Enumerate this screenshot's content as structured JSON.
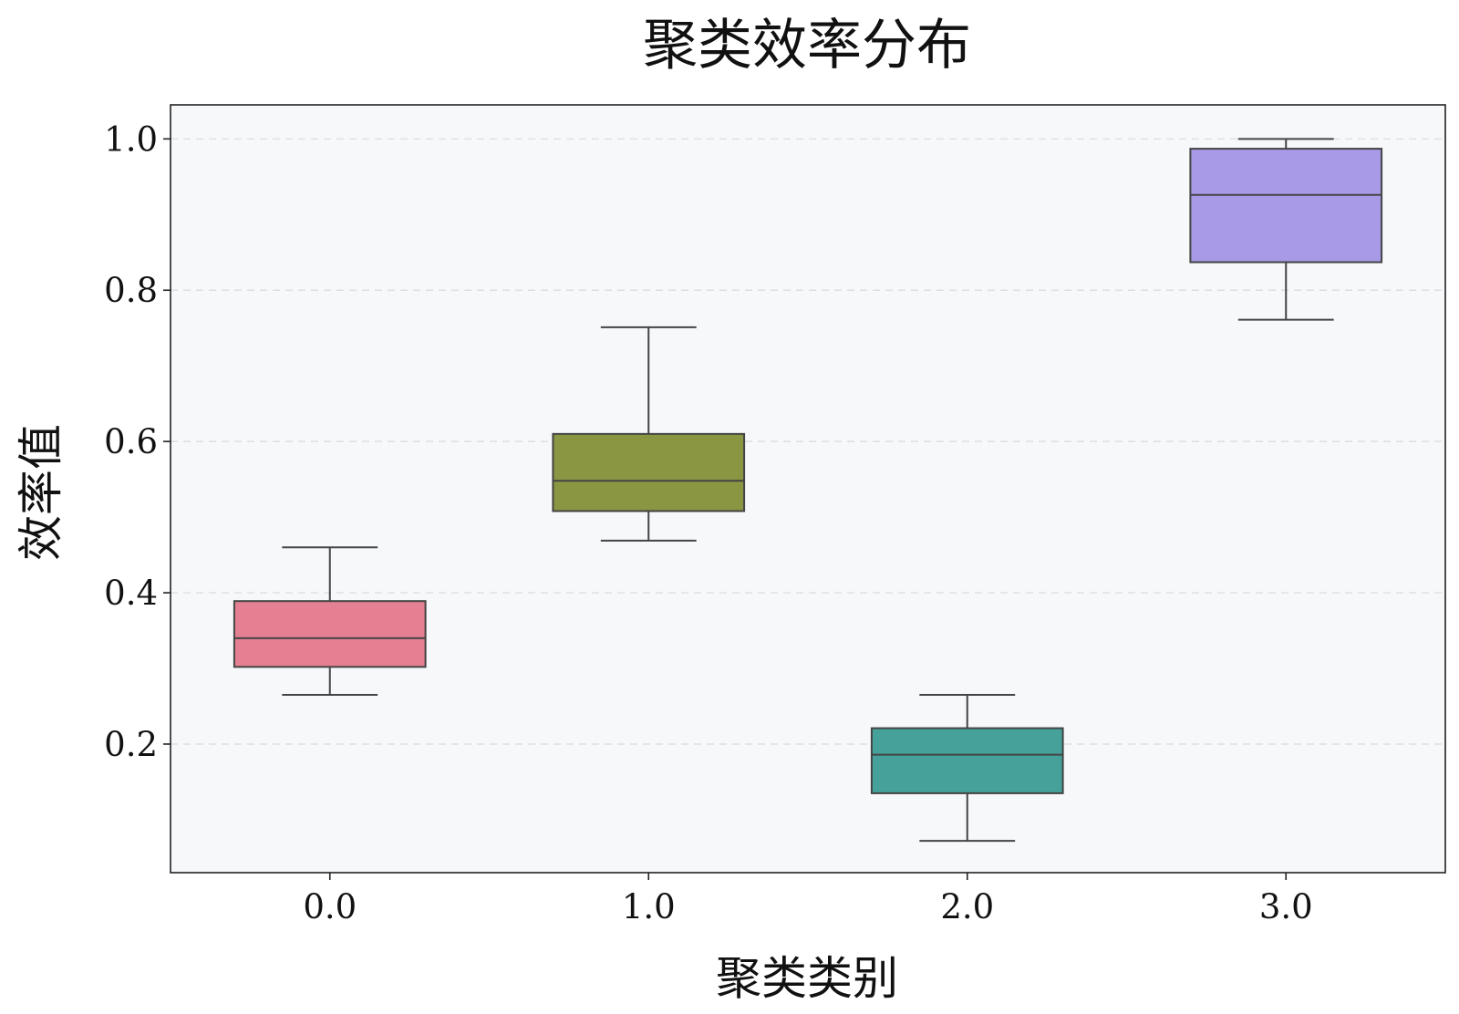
{
  "chart_data": {
    "type": "box",
    "title": "聚类效率分布",
    "xlabel": "聚类类别",
    "ylabel": "效率值",
    "categories": [
      "0.0",
      "1.0",
      "2.0",
      "3.0"
    ],
    "yticks": [
      "0.2",
      "0.4",
      "0.6",
      "0.8",
      "1.0"
    ],
    "ylim": [
      0.03,
      1.045
    ],
    "grid": "horizontal dashed",
    "boxes": [
      {
        "category": "0.0",
        "whisker_low": 0.265,
        "q1": 0.302,
        "median": 0.34,
        "q3": 0.389,
        "whisker_high": 0.46,
        "color": "#e57f92"
      },
      {
        "category": "1.0",
        "whisker_low": 0.469,
        "q1": 0.508,
        "median": 0.548,
        "q3": 0.61,
        "whisker_high": 0.751,
        "color": "#8b9642"
      },
      {
        "category": "2.0",
        "whisker_low": 0.072,
        "q1": 0.135,
        "median": 0.186,
        "q3": 0.221,
        "whisker_high": 0.265,
        "color": "#46a19a"
      },
      {
        "category": "3.0",
        "whisker_low": 0.761,
        "q1": 0.837,
        "median": 0.926,
        "q3": 0.987,
        "whisker_high": 1.0,
        "color": "#a99ae8"
      }
    ]
  }
}
